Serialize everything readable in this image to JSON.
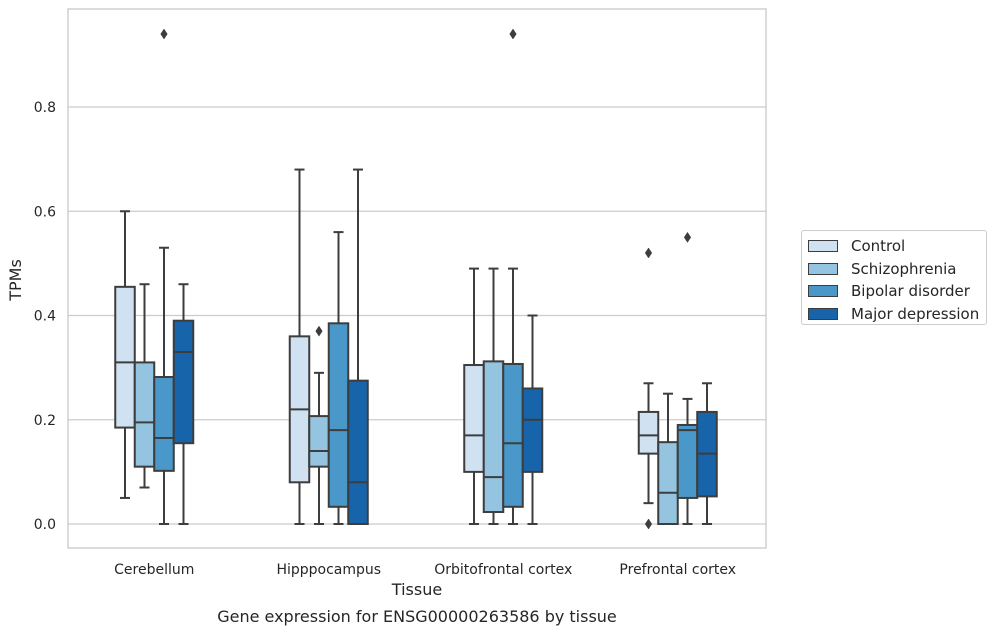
{
  "chart_data": {
    "type": "box",
    "title": "Gene expression for ENSG00000263586 by tissue",
    "xlabel": "Tissue",
    "ylabel": "TPMs",
    "ylim": [
      -0.045,
      0.987
    ],
    "yticks": [
      "0.0",
      "0.2",
      "0.4",
      "0.6",
      "0.8"
    ],
    "ytick_values": [
      0.0,
      0.2,
      0.4,
      0.6,
      0.8
    ],
    "grid": true,
    "legend_placement": "right-center",
    "categories": [
      "Cerebellum",
      "Hipppocampus",
      "Orbitofrontal cortex",
      "Prefrontal cortex"
    ],
    "series": [
      {
        "name": "Control",
        "color": "#d0e1f2",
        "boxes": [
          {
            "whislo": 0.05,
            "q1": 0.185,
            "med": 0.31,
            "q3": 0.455,
            "whishi": 0.6,
            "fliers": []
          },
          {
            "whislo": 0.0,
            "q1": 0.08,
            "med": 0.22,
            "q3": 0.36,
            "whishi": 0.68,
            "fliers": []
          },
          {
            "whislo": 0.0,
            "q1": 0.1,
            "med": 0.17,
            "q3": 0.305,
            "whishi": 0.49,
            "fliers": []
          },
          {
            "whislo": 0.04,
            "q1": 0.135,
            "med": 0.17,
            "q3": 0.215,
            "whishi": 0.27,
            "fliers": [
              0.52,
              0.0
            ]
          }
        ]
      },
      {
        "name": "Schizophrenia",
        "color": "#94c4df",
        "boxes": [
          {
            "whislo": 0.07,
            "q1": 0.11,
            "med": 0.195,
            "q3": 0.31,
            "whishi": 0.46,
            "fliers": []
          },
          {
            "whislo": 0.0,
            "q1": 0.11,
            "med": 0.14,
            "q3": 0.207,
            "whishi": 0.29,
            "fliers": [
              0.37
            ]
          },
          {
            "whislo": 0.0,
            "q1": 0.023,
            "med": 0.09,
            "q3": 0.312,
            "whishi": 0.49,
            "fliers": []
          },
          {
            "whislo": 0.0,
            "q1": 0.0,
            "med": 0.06,
            "q3": 0.157,
            "whishi": 0.25,
            "fliers": []
          }
        ]
      },
      {
        "name": "Bipolar disorder",
        "color": "#4a98c9",
        "boxes": [
          {
            "whislo": 0.0,
            "q1": 0.102,
            "med": 0.165,
            "q3": 0.282,
            "whishi": 0.53,
            "fliers": [
              0.94
            ]
          },
          {
            "whislo": 0.0,
            "q1": 0.033,
            "med": 0.18,
            "q3": 0.385,
            "whishi": 0.56,
            "fliers": []
          },
          {
            "whislo": 0.0,
            "q1": 0.033,
            "med": 0.155,
            "q3": 0.307,
            "whishi": 0.49,
            "fliers": [
              0.94
            ]
          },
          {
            "whislo": 0.0,
            "q1": 0.05,
            "med": 0.18,
            "q3": 0.19,
            "whishi": 0.24,
            "fliers": [
              0.55
            ]
          }
        ]
      },
      {
        "name": "Major depression",
        "color": "#1764ab",
        "boxes": [
          {
            "whislo": 0.0,
            "q1": 0.155,
            "med": 0.33,
            "q3": 0.39,
            "whishi": 0.46,
            "fliers": []
          },
          {
            "whislo": 0.0,
            "q1": 0.0,
            "med": 0.08,
            "q3": 0.275,
            "whishi": 0.68,
            "fliers": []
          },
          {
            "whislo": 0.0,
            "q1": 0.1,
            "med": 0.2,
            "q3": 0.26,
            "whishi": 0.4,
            "fliers": []
          },
          {
            "whislo": 0.0,
            "q1": 0.053,
            "med": 0.135,
            "q3": 0.215,
            "whishi": 0.27,
            "fliers": []
          }
        ]
      }
    ]
  }
}
